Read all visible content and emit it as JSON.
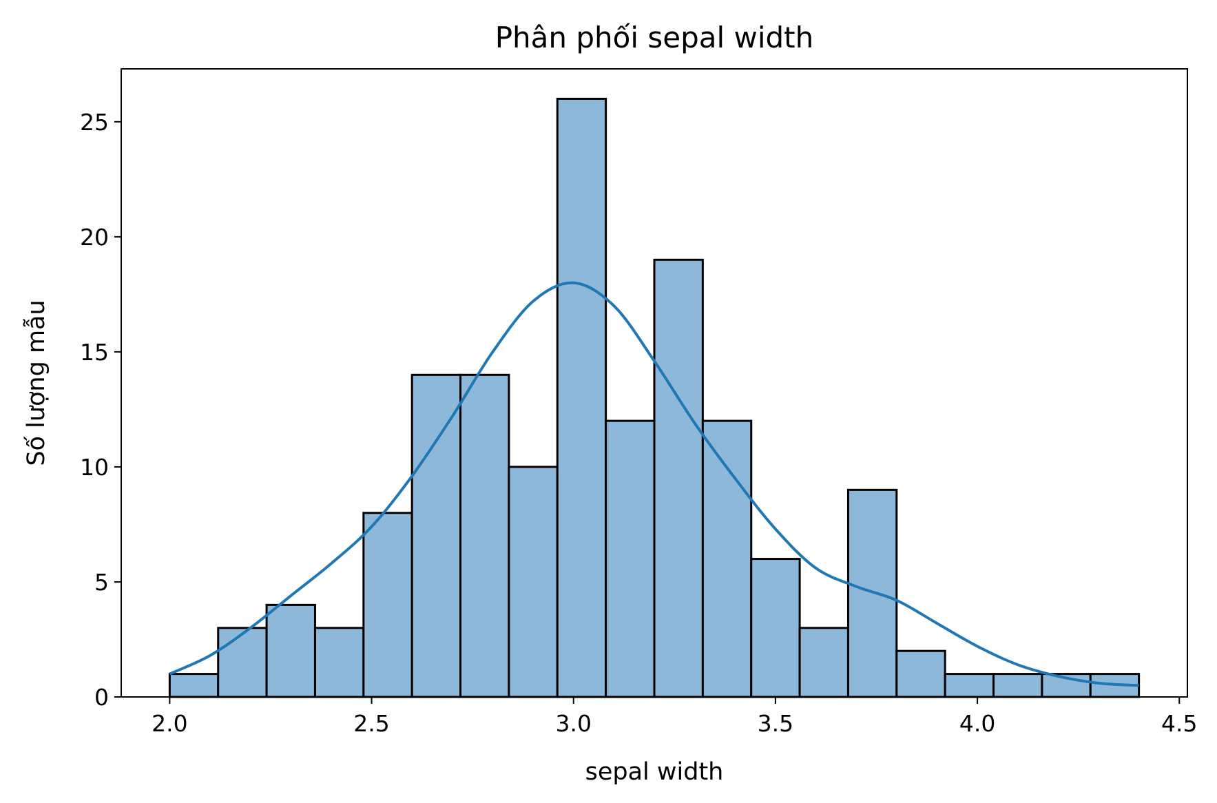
{
  "chart_data": {
    "type": "bar",
    "subtype": "histogram-with-kde",
    "title": "Phân phối sepal width",
    "xlabel": "sepal width",
    "ylabel": "Số lượng mẫu",
    "xlim": [
      1.88,
      4.52
    ],
    "ylim": [
      0,
      27.3
    ],
    "x_ticks": [
      2.0,
      2.5,
      3.0,
      3.5,
      4.0,
      4.5
    ],
    "x_tick_labels": [
      "2.0",
      "2.5",
      "3.0",
      "3.5",
      "4.0",
      "4.5"
    ],
    "y_ticks": [
      0,
      5,
      10,
      15,
      20,
      25
    ],
    "y_tick_labels": [
      "0",
      "5",
      "10",
      "15",
      "20",
      "25"
    ],
    "bin_edges": [
      2.0,
      2.12,
      2.24,
      2.36,
      2.48,
      2.6,
      2.72,
      2.84,
      2.96,
      3.08,
      3.2,
      3.32,
      3.44,
      3.56,
      3.68,
      3.8,
      3.92,
      4.04,
      4.16,
      4.28,
      4.4
    ],
    "counts": [
      1,
      3,
      4,
      3,
      8,
      14,
      14,
      10,
      26,
      12,
      19,
      12,
      6,
      3,
      9,
      2,
      1,
      1,
      1,
      1
    ],
    "bar_color": "#8db8da",
    "kde_color": "#1f77b4",
    "kde": {
      "x": [
        2.0,
        2.1,
        2.2,
        2.3,
        2.4,
        2.5,
        2.6,
        2.7,
        2.8,
        2.9,
        3.0,
        3.1,
        3.2,
        3.3,
        3.4,
        3.5,
        3.6,
        3.7,
        3.8,
        3.9,
        4.0,
        4.1,
        4.2,
        4.3,
        4.4
      ],
      "y": [
        1.0,
        1.8,
        3.0,
        4.4,
        5.8,
        7.4,
        9.6,
        12.2,
        15.0,
        17.2,
        18.0,
        17.0,
        14.6,
        11.9,
        9.5,
        7.3,
        5.6,
        4.8,
        4.2,
        3.2,
        2.2,
        1.4,
        0.9,
        0.6,
        0.5
      ]
    },
    "grid": false,
    "legend": "none"
  }
}
